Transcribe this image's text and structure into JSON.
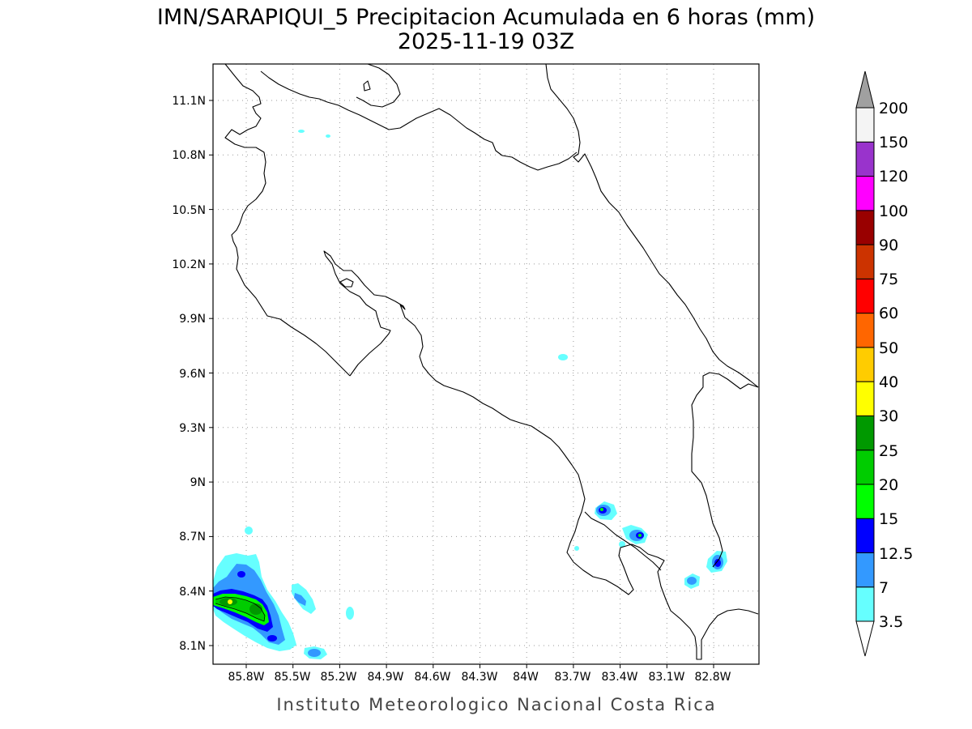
{
  "title": {
    "line1": "IMN/SARAPIQUI_5 Precipitacion Acumulada en 6 horas (mm)",
    "line2": "2025-11-19 03Z"
  },
  "map": {
    "lat_ticks": [
      "11.1N",
      "10.8N",
      "10.5N",
      "10.2N",
      "9.9N",
      "9.6N",
      "9.3N",
      "9N",
      "8.7N",
      "8.4N",
      "8.1N"
    ],
    "lon_ticks": [
      "85.8W",
      "85.5W",
      "85.2W",
      "84.9W",
      "84.6W",
      "84.3W",
      "84W",
      "83.7W",
      "83.4W",
      "83.1W",
      "82.8W"
    ],
    "lat_values": [
      11.1,
      10.8,
      10.5,
      10.2,
      9.9,
      9.6,
      9.3,
      9.0,
      8.7,
      8.4,
      8.1
    ],
    "lon_values": [
      -85.8,
      -85.5,
      -85.2,
      -84.9,
      -84.6,
      -84.3,
      -84.0,
      -83.7,
      -83.4,
      -83.1,
      -82.8
    ],
    "grid": true
  },
  "colorbar": {
    "labels": [
      "3.5",
      "7",
      "12.5",
      "15",
      "20",
      "25",
      "30",
      "40",
      "50",
      "60",
      "75",
      "90",
      "100",
      "120",
      "150",
      "200"
    ],
    "colors": [
      "#66ffff",
      "#3399ff",
      "#0000ff",
      "#00ff00",
      "#00cc00",
      "#009900",
      "#ffff00",
      "#ffcc00",
      "#ff6600",
      "#ff0000",
      "#cc3300",
      "#990000",
      "#ff00ff",
      "#9933cc",
      "#f4f4f4"
    ],
    "top_arrow_color": "#a0a0a0",
    "bottom_arrow_color": "#ffffff"
  },
  "credit": "Instituto Meteorologico Nacional Costa Rica"
}
